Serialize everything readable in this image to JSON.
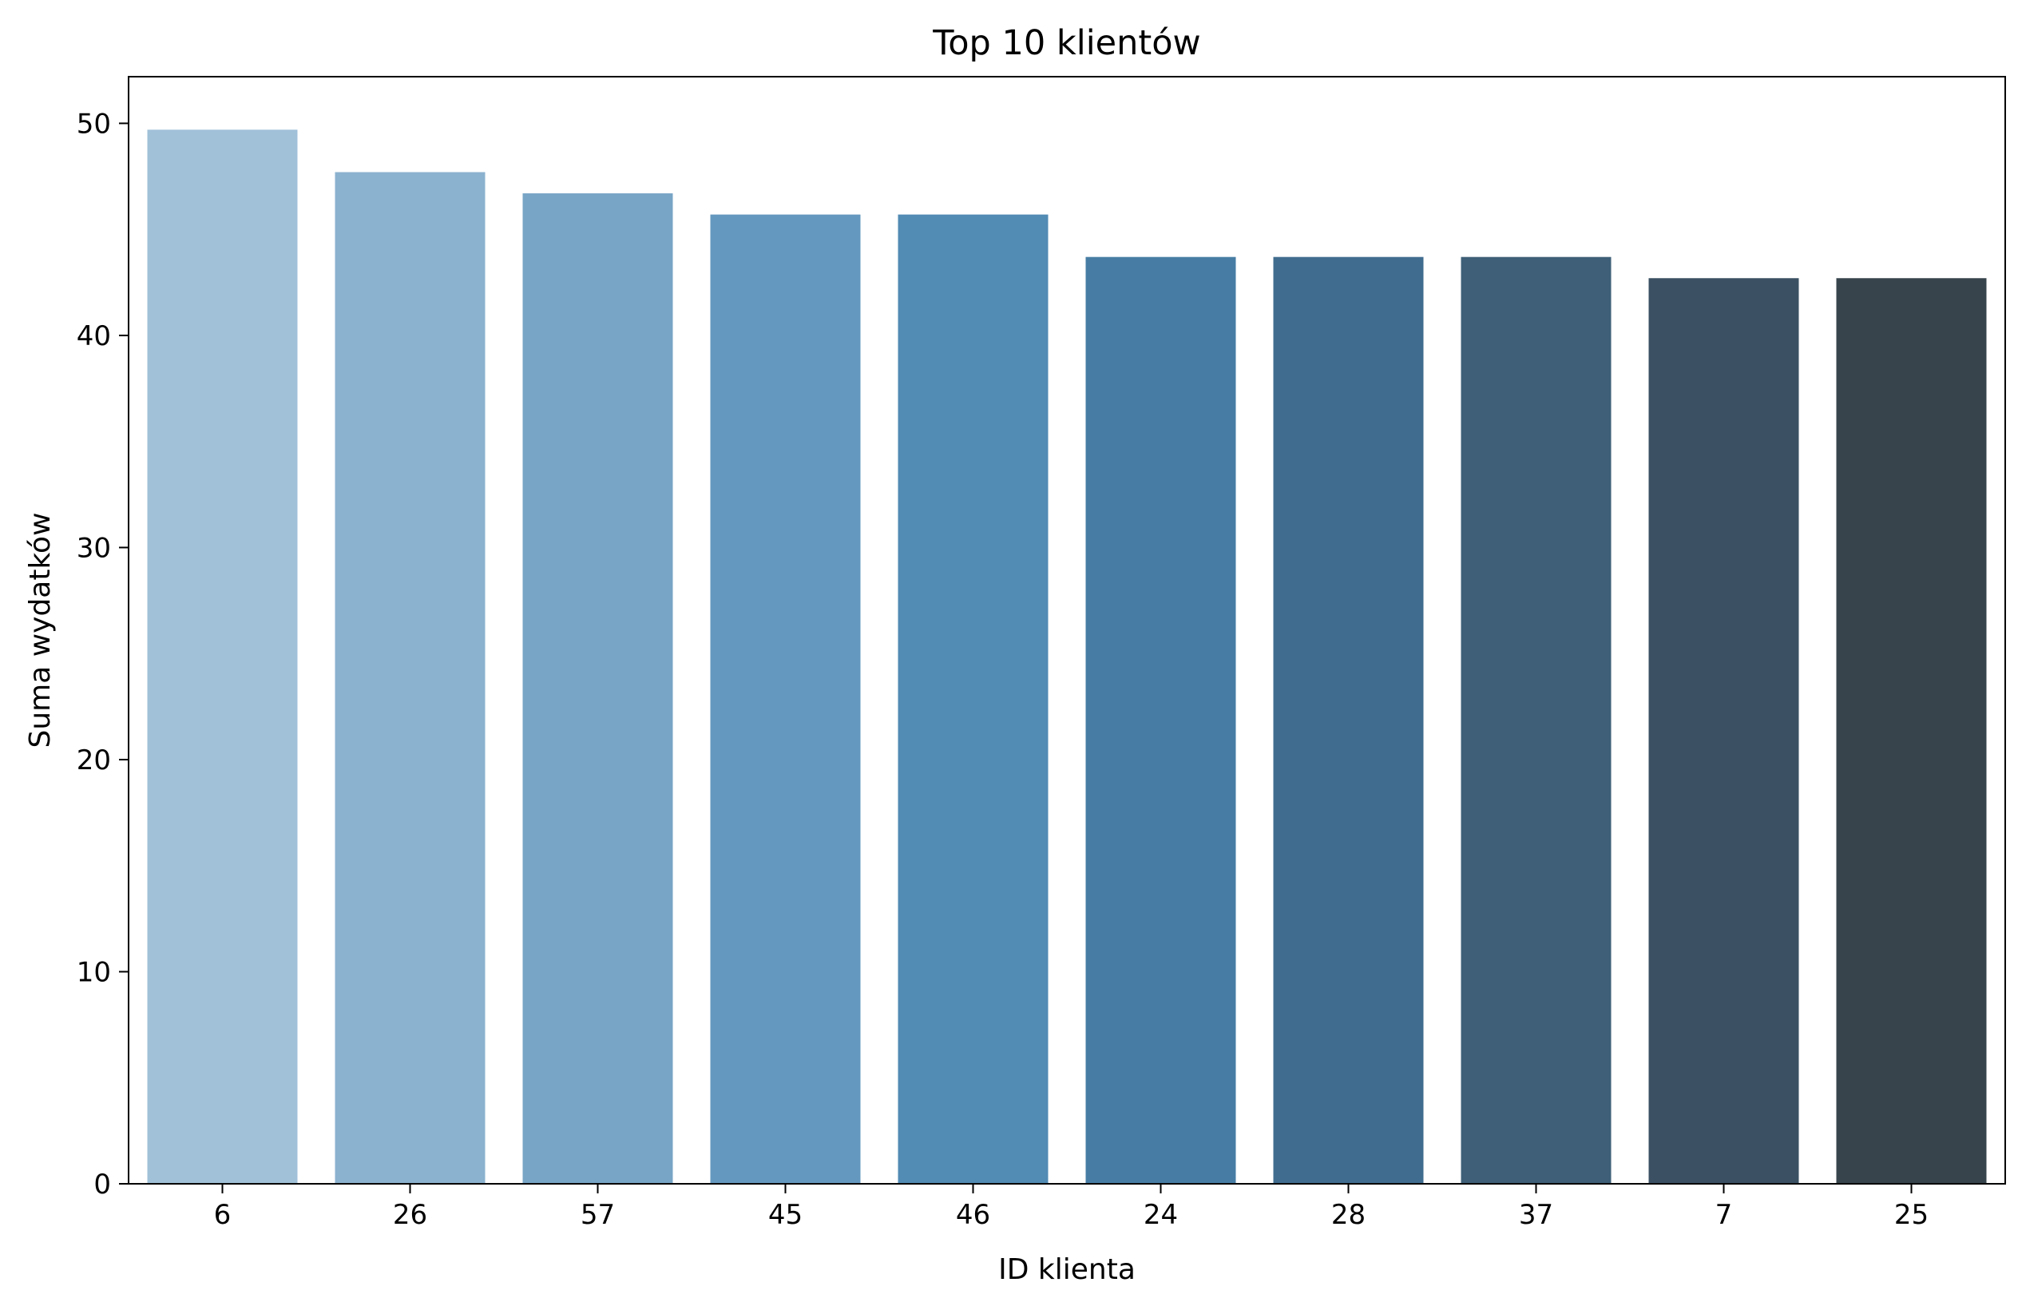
{
  "chart_data": {
    "type": "bar",
    "title": "Top 10 klientów",
    "xlabel": "ID klienta",
    "ylabel": "Suma wydatków",
    "categories": [
      "6",
      "26",
      "57",
      "45",
      "46",
      "24",
      "28",
      "37",
      "7",
      "25"
    ],
    "values": [
      49.7,
      47.7,
      46.7,
      45.7,
      45.7,
      43.7,
      43.7,
      43.7,
      42.7,
      42.7
    ],
    "ylim": [
      0,
      52.2
    ],
    "yticks": [
      0,
      10,
      20,
      30,
      40,
      50
    ],
    "grid": false,
    "legend": "none",
    "colors": [
      "#a0c1d8",
      "#8bb2cf",
      "#78a5c6",
      "#6598bf",
      "#528bb4",
      "#477da4",
      "#406d8f",
      "#3e5f77",
      "#3b5163",
      "#37444c"
    ]
  }
}
